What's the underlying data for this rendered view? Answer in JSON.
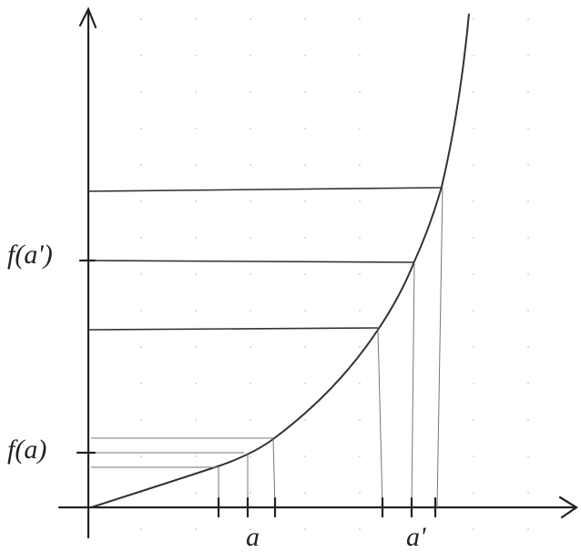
{
  "y_labels": [
    "f(a')",
    "f(a)"
  ],
  "x_labels": [
    "a",
    "a'"
  ]
}
